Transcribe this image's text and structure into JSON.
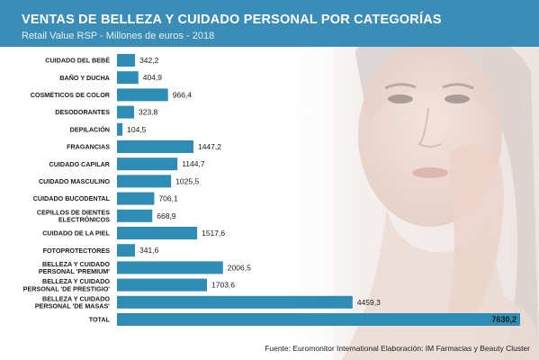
{
  "header": {
    "title": "VENTAS DE BELLEZA Y CUIDADO PERSONAL POR CATEGORÍAS",
    "subtitle": "Retail Value RSP - Millones de euros - 2018"
  },
  "source": "Fuente: Euromonitor International Elaboración: IM Farmacias y Beauty Cluster",
  "colors": {
    "header": "#3a8db6",
    "bar": "#2f8db5",
    "total_bar": "#2f8db5"
  },
  "chart_data": {
    "type": "bar",
    "orientation": "horizontal",
    "title": "VENTAS DE BELLEZA Y CUIDADO PERSONAL POR CATEGORÍAS",
    "subtitle": "Retail Value RSP - Millones de euros - 2018",
    "categories": [
      [
        "CUIDADO DEL BEBÉ"
      ],
      [
        "BAÑO Y DUCHA"
      ],
      [
        "COSMÉTICOS DE COLOR"
      ],
      [
        "DESODORANTES"
      ],
      [
        "DEPILACIÓN"
      ],
      [
        "FRAGANCIAS"
      ],
      [
        "CUIDADO CAPILAR"
      ],
      [
        "CUIDADO MASCULINO"
      ],
      [
        "CUIDADO BUCODENTAL"
      ],
      [
        "CEPILLOS DE DIENTES",
        "ELECTRÓNICOS"
      ],
      [
        "CUIDADO DE LA PIEL"
      ],
      [
        "FOTOPROTECTORES"
      ],
      [
        "BELLEZA Y CUIDADO",
        "PERSONAL 'PREMIUM'"
      ],
      [
        "BELLEZA Y CUIDADO",
        "PERSONAL 'DE PRESTIGIO'"
      ],
      [
        "BELLEZA Y CUIDADO",
        "PERSONAL 'DE MASAS'"
      ],
      [
        "TOTAL"
      ]
    ],
    "values": [
      342.2,
      404.9,
      966.4,
      323.8,
      104.5,
      1447.2,
      1144.7,
      1025.5,
      706.1,
      668.9,
      1517.6,
      341.6,
      2006.5,
      1703.6,
      4459.3,
      7630.2
    ],
    "value_labels": [
      "342,2",
      "404,9",
      "966,4",
      "323,8",
      "104,5",
      "1447,2",
      "1144,7",
      "1025,5",
      "706,1",
      "668,9",
      "1517,6",
      "341,6",
      "2006,5",
      "1703,6",
      "4459,3",
      "7630,2"
    ],
    "xlim": [
      0,
      7630.2
    ],
    "grid": false,
    "xlabel": "",
    "ylabel": ""
  }
}
